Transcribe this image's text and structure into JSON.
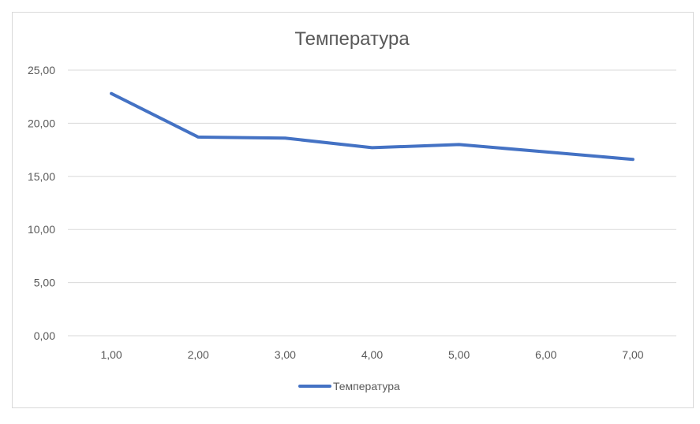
{
  "chart_data": {
    "type": "line",
    "title": "Температура",
    "xlabel": "",
    "ylabel": "",
    "x": [
      "1,00",
      "2,00",
      "3,00",
      "4,00",
      "5,00",
      "6,00",
      "7,00"
    ],
    "series": [
      {
        "name": "Температура",
        "values": [
          22.8,
          18.7,
          18.6,
          17.7,
          18.0,
          17.3,
          16.6
        ],
        "color": "#4472c4"
      }
    ],
    "ylim": [
      0,
      25
    ],
    "yticks": [
      0,
      5,
      10,
      15,
      20,
      25
    ],
    "ytick_labels": [
      "0,00",
      "5,00",
      "10,00",
      "15,00",
      "20,00",
      "25,00"
    ],
    "grid": true,
    "legend": "bottom",
    "colors": {
      "gridline": "#d9d9d9",
      "text": "#595959",
      "border": "#d9d9d9"
    }
  }
}
